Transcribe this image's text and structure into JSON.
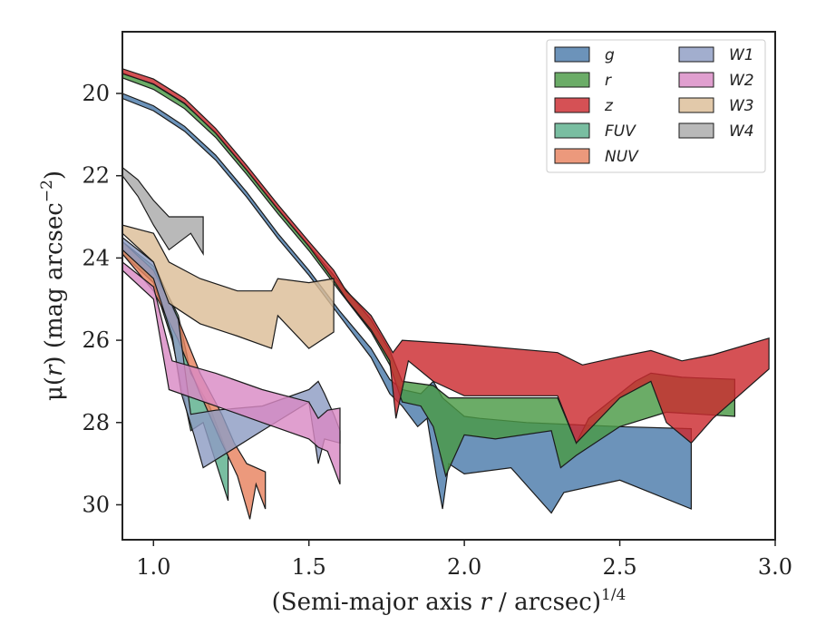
{
  "chart_data": {
    "type": "area",
    "xlabel_main": "(Semi-major axis ",
    "xlabel_var": "r",
    "xlabel_rest": " / arcsec)",
    "xlabel_exp": "1/4",
    "ylabel_pre": "μ(",
    "ylabel_var": "r",
    "ylabel_post": ") (mag arcsec",
    "ylabel_exp": "−2",
    "ylabel_close": ")",
    "xlim": [
      0.9,
      3.0
    ],
    "ylim": [
      30.85,
      18.5
    ],
    "y_inverted": true,
    "xticks": [
      1.0,
      1.5,
      2.0,
      2.5,
      3.0
    ],
    "xtick_labels": [
      "1.0",
      "1.5",
      "2.0",
      "2.5",
      "3.0"
    ],
    "yticks": [
      20,
      22,
      24,
      26,
      28,
      30
    ],
    "ytick_labels": [
      "20",
      "22",
      "24",
      "26",
      "28",
      "30"
    ],
    "grid": false,
    "legend_placement": "top-right",
    "legend_columns": 2,
    "series": [
      {
        "name": "g",
        "color": "#4c7bab",
        "upper": [
          [
            0.9,
            20.0
          ],
          [
            1.0,
            20.3
          ],
          [
            1.1,
            20.8
          ],
          [
            1.2,
            21.5
          ],
          [
            1.3,
            22.4
          ],
          [
            1.4,
            23.4
          ],
          [
            1.5,
            24.3
          ],
          [
            1.6,
            25.3
          ],
          [
            1.7,
            26.2
          ],
          [
            1.76,
            26.95
          ],
          [
            1.8,
            27.2
          ],
          [
            1.86,
            27.3
          ],
          [
            1.9,
            27.0
          ],
          [
            1.93,
            27.4
          ],
          [
            2.0,
            27.85
          ],
          [
            2.05,
            27.9
          ],
          [
            2.2,
            28.0
          ],
          [
            2.5,
            28.1
          ],
          [
            2.73,
            28.15
          ]
        ],
        "lower": [
          [
            0.9,
            20.12
          ],
          [
            1.0,
            20.42
          ],
          [
            1.1,
            20.92
          ],
          [
            1.2,
            21.62
          ],
          [
            1.3,
            22.52
          ],
          [
            1.4,
            23.52
          ],
          [
            1.5,
            24.42
          ],
          [
            1.6,
            25.42
          ],
          [
            1.7,
            26.42
          ],
          [
            1.76,
            27.3
          ],
          [
            1.8,
            27.6
          ],
          [
            1.85,
            28.1
          ],
          [
            1.88,
            27.9
          ],
          [
            1.91,
            29.3
          ],
          [
            1.93,
            30.1
          ],
          [
            1.95,
            29.0
          ],
          [
            2.0,
            29.25
          ],
          [
            2.15,
            29.1
          ],
          [
            2.28,
            30.2
          ],
          [
            2.32,
            29.7
          ],
          [
            2.5,
            29.4
          ],
          [
            2.73,
            30.1
          ]
        ]
      },
      {
        "name": "r",
        "color": "#4a9a45",
        "upper": [
          [
            0.9,
            19.5
          ],
          [
            1.0,
            19.78
          ],
          [
            1.1,
            20.25
          ],
          [
            1.2,
            20.95
          ],
          [
            1.3,
            21.85
          ],
          [
            1.4,
            22.8
          ],
          [
            1.5,
            23.7
          ],
          [
            1.6,
            24.6
          ],
          [
            1.7,
            25.5
          ],
          [
            1.76,
            26.25
          ],
          [
            1.8,
            27.0
          ],
          [
            1.9,
            27.1
          ],
          [
            1.95,
            27.4
          ],
          [
            2.0,
            27.4
          ],
          [
            2.3,
            27.4
          ],
          [
            2.36,
            28.5
          ],
          [
            2.4,
            27.9
          ],
          [
            2.55,
            27.0
          ],
          [
            2.6,
            26.8
          ],
          [
            2.7,
            26.9
          ],
          [
            2.87,
            26.95
          ]
        ],
        "lower": [
          [
            0.9,
            19.62
          ],
          [
            1.0,
            19.9
          ],
          [
            1.1,
            20.37
          ],
          [
            1.2,
            21.07
          ],
          [
            1.3,
            21.97
          ],
          [
            1.4,
            22.92
          ],
          [
            1.5,
            23.82
          ],
          [
            1.6,
            24.82
          ],
          [
            1.7,
            25.8
          ],
          [
            1.76,
            26.6
          ],
          [
            1.8,
            27.5
          ],
          [
            1.86,
            27.6
          ],
          [
            1.9,
            28.1
          ],
          [
            1.94,
            29.3
          ],
          [
            2.0,
            28.3
          ],
          [
            2.1,
            28.4
          ],
          [
            2.28,
            28.2
          ],
          [
            2.31,
            29.1
          ],
          [
            2.36,
            28.8
          ],
          [
            2.5,
            28.1
          ],
          [
            2.65,
            27.75
          ],
          [
            2.87,
            27.85
          ]
        ]
      },
      {
        "name": "z",
        "color": "#cc2b2f",
        "upper": [
          [
            0.9,
            19.4
          ],
          [
            1.0,
            19.65
          ],
          [
            1.1,
            20.12
          ],
          [
            1.2,
            20.85
          ],
          [
            1.3,
            21.75
          ],
          [
            1.4,
            22.7
          ],
          [
            1.5,
            23.6
          ],
          [
            1.58,
            24.3
          ],
          [
            1.62,
            24.8
          ],
          [
            1.7,
            25.4
          ],
          [
            1.77,
            26.3
          ],
          [
            1.8,
            26.0
          ],
          [
            2.0,
            26.1
          ],
          [
            2.3,
            26.3
          ],
          [
            2.38,
            26.6
          ],
          [
            2.5,
            26.4
          ],
          [
            2.6,
            26.25
          ],
          [
            2.7,
            26.5
          ],
          [
            2.8,
            26.35
          ],
          [
            2.98,
            25.95
          ]
        ],
        "lower": [
          [
            0.9,
            19.52
          ],
          [
            1.0,
            19.77
          ],
          [
            1.1,
            20.24
          ],
          [
            1.2,
            20.97
          ],
          [
            1.3,
            21.87
          ],
          [
            1.4,
            22.82
          ],
          [
            1.5,
            23.72
          ],
          [
            1.58,
            24.55
          ],
          [
            1.62,
            25.0
          ],
          [
            1.7,
            25.75
          ],
          [
            1.76,
            26.5
          ],
          [
            1.78,
            27.9
          ],
          [
            1.82,
            26.5
          ],
          [
            1.9,
            27.0
          ],
          [
            2.0,
            27.35
          ],
          [
            2.3,
            27.35
          ],
          [
            2.36,
            28.5
          ],
          [
            2.5,
            27.4
          ],
          [
            2.6,
            27.0
          ],
          [
            2.65,
            28.0
          ],
          [
            2.73,
            28.5
          ],
          [
            2.8,
            27.9
          ],
          [
            2.98,
            26.7
          ]
        ]
      },
      {
        "name": "FUV",
        "color": "#5bb08c",
        "upper": [
          [
            0.9,
            23.6
          ],
          [
            1.0,
            24.2
          ],
          [
            1.08,
            25.4
          ],
          [
            1.12,
            26.8
          ],
          [
            1.18,
            27.6
          ],
          [
            1.24,
            28.8
          ]
        ],
        "lower": [
          [
            0.9,
            23.9
          ],
          [
            1.0,
            24.6
          ],
          [
            1.06,
            26.0
          ],
          [
            1.12,
            28.2
          ],
          [
            1.16,
            28.0
          ],
          [
            1.24,
            29.9
          ]
        ]
      },
      {
        "name": "NUV",
        "color": "#e8825f",
        "upper": [
          [
            0.9,
            23.6
          ],
          [
            1.0,
            24.3
          ],
          [
            1.08,
            25.5
          ],
          [
            1.15,
            26.8
          ],
          [
            1.22,
            27.8
          ],
          [
            1.26,
            28.5
          ],
          [
            1.3,
            29.0
          ],
          [
            1.33,
            29.1
          ],
          [
            1.36,
            29.2
          ]
        ],
        "lower": [
          [
            0.9,
            23.9
          ],
          [
            1.0,
            24.8
          ],
          [
            1.08,
            26.0
          ],
          [
            1.15,
            27.3
          ],
          [
            1.22,
            28.5
          ],
          [
            1.27,
            29.3
          ],
          [
            1.31,
            30.35
          ],
          [
            1.33,
            29.5
          ],
          [
            1.36,
            30.1
          ]
        ]
      },
      {
        "name": "W1",
        "color": "#8e9cc3",
        "upper": [
          [
            0.9,
            23.5
          ],
          [
            1.0,
            24.1
          ],
          [
            1.08,
            25.5
          ],
          [
            1.12,
            27.8
          ],
          [
            1.2,
            27.7
          ],
          [
            1.35,
            27.6
          ],
          [
            1.5,
            27.2
          ],
          [
            1.53,
            27.0
          ],
          [
            1.55,
            27.3
          ],
          [
            1.58,
            27.8
          ],
          [
            1.6,
            28.2
          ]
        ],
        "lower": [
          [
            0.9,
            23.8
          ],
          [
            1.0,
            24.5
          ],
          [
            1.06,
            25.9
          ],
          [
            1.09,
            27.3
          ],
          [
            1.13,
            28.3
          ],
          [
            1.16,
            29.1
          ],
          [
            1.35,
            28.2
          ],
          [
            1.5,
            27.5
          ],
          [
            1.53,
            29.0
          ],
          [
            1.55,
            28.4
          ],
          [
            1.6,
            28.5
          ]
        ]
      },
      {
        "name": "W2",
        "color": "#d98ac4",
        "upper": [
          [
            0.9,
            24.1
          ],
          [
            1.0,
            24.7
          ],
          [
            1.06,
            26.5
          ],
          [
            1.2,
            26.8
          ],
          [
            1.35,
            27.2
          ],
          [
            1.5,
            27.5
          ],
          [
            1.53,
            27.9
          ],
          [
            1.56,
            27.7
          ],
          [
            1.6,
            27.65
          ]
        ],
        "lower": [
          [
            0.9,
            24.3
          ],
          [
            1.0,
            25.0
          ],
          [
            1.05,
            27.2
          ],
          [
            1.2,
            27.6
          ],
          [
            1.35,
            28.0
          ],
          [
            1.5,
            28.4
          ],
          [
            1.53,
            28.6
          ],
          [
            1.56,
            28.7
          ],
          [
            1.6,
            29.5
          ]
        ]
      },
      {
        "name": "W3",
        "color": "#dcbd97",
        "upper": [
          [
            0.9,
            23.2
          ],
          [
            1.0,
            23.4
          ],
          [
            1.05,
            24.1
          ],
          [
            1.15,
            24.5
          ],
          [
            1.27,
            24.8
          ],
          [
            1.38,
            24.8
          ],
          [
            1.4,
            24.5
          ],
          [
            1.5,
            24.6
          ],
          [
            1.58,
            24.5
          ]
        ],
        "lower": [
          [
            0.9,
            23.4
          ],
          [
            1.0,
            24.1
          ],
          [
            1.05,
            25.1
          ],
          [
            1.15,
            25.6
          ],
          [
            1.27,
            25.9
          ],
          [
            1.38,
            26.2
          ],
          [
            1.4,
            25.4
          ],
          [
            1.5,
            26.2
          ],
          [
            1.58,
            25.8
          ]
        ]
      },
      {
        "name": "W4",
        "color": "#aaaaaa",
        "upper": [
          [
            0.9,
            21.8
          ],
          [
            0.95,
            22.1
          ],
          [
            1.0,
            22.6
          ],
          [
            1.05,
            23.0
          ],
          [
            1.16,
            23.0
          ]
        ],
        "lower": [
          [
            0.9,
            22.0
          ],
          [
            0.95,
            22.5
          ],
          [
            1.0,
            23.2
          ],
          [
            1.05,
            23.8
          ],
          [
            1.12,
            23.4
          ],
          [
            1.16,
            23.9
          ]
        ]
      }
    ],
    "legend_col1": [
      "g",
      "r",
      "z",
      "FUV",
      "NUV"
    ],
    "legend_col2": [
      "W1",
      "W2",
      "W3",
      "W4"
    ]
  }
}
